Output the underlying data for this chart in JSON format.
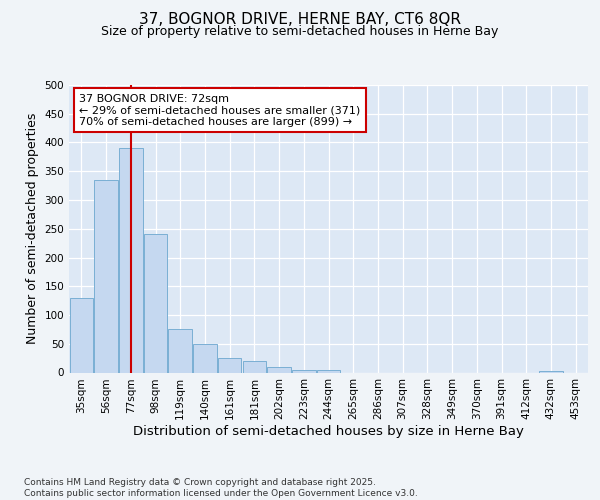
{
  "title_line1": "37, BOGNOR DRIVE, HERNE BAY, CT6 8QR",
  "title_line2": "Size of property relative to semi-detached houses in Herne Bay",
  "xlabel": "Distribution of semi-detached houses by size in Herne Bay",
  "ylabel": "Number of semi-detached properties",
  "categories": [
    "35sqm",
    "56sqm",
    "77sqm",
    "98sqm",
    "119sqm",
    "140sqm",
    "161sqm",
    "181sqm",
    "202sqm",
    "223sqm",
    "244sqm",
    "265sqm",
    "286sqm",
    "307sqm",
    "328sqm",
    "349sqm",
    "370sqm",
    "391sqm",
    "412sqm",
    "432sqm",
    "453sqm"
  ],
  "values": [
    130,
    335,
    390,
    240,
    75,
    50,
    25,
    20,
    10,
    5,
    5,
    0,
    0,
    0,
    0,
    0,
    0,
    0,
    0,
    2,
    0
  ],
  "bar_color": "#c5d8f0",
  "bar_edge_color": "#7aafd4",
  "vline_x": 2.0,
  "vline_color": "#cc0000",
  "annotation_text": "37 BOGNOR DRIVE: 72sqm\n← 29% of semi-detached houses are smaller (371)\n70% of semi-detached houses are larger (899) →",
  "annotation_box_color": "#ffffff",
  "annotation_box_edge": "#cc0000",
  "ylim": [
    0,
    500
  ],
  "yticks": [
    0,
    50,
    100,
    150,
    200,
    250,
    300,
    350,
    400,
    450,
    500
  ],
  "fig_bg_color": "#f0f4f8",
  "plot_bg_color": "#dde8f5",
  "footer": "Contains HM Land Registry data © Crown copyright and database right 2025.\nContains public sector information licensed under the Open Government Licence v3.0.",
  "title_fontsize": 11,
  "subtitle_fontsize": 9,
  "axis_label_fontsize": 9,
  "tick_fontsize": 7.5,
  "annotation_fontsize": 8,
  "footer_fontsize": 6.5
}
